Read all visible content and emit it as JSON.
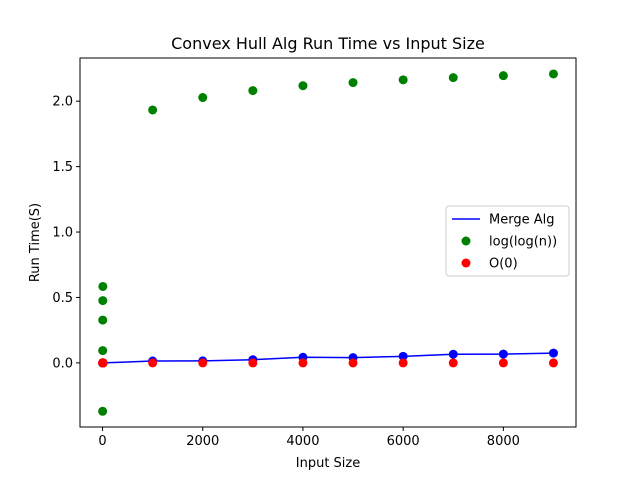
{
  "chart_data": {
    "type": "scatter",
    "title": "Convex Hull Alg Run Time vs Input Size",
    "xlabel": "Input Size",
    "ylabel": "Run Time(S)",
    "xlim": [
      -450,
      9450
    ],
    "ylim": [
      -0.49,
      2.33
    ],
    "xticks": [
      0,
      2000,
      4000,
      6000,
      8000
    ],
    "xtick_labels": [
      "0",
      "2000",
      "4000",
      "6000",
      "8000"
    ],
    "yticks": [
      0.0,
      0.5,
      1.0,
      1.5,
      2.0
    ],
    "ytick_labels": [
      "0.0",
      "0.5",
      "1.0",
      "1.5",
      "2.0"
    ],
    "grid": false,
    "legend_position": "center-right",
    "series": [
      {
        "name": "Merge Alg",
        "kind": "line-with-markers",
        "color": "#0000ff",
        "x": [
          1,
          2,
          3,
          4,
          5,
          6,
          7,
          8,
          9,
          10,
          1000,
          2000,
          3000,
          4000,
          5000,
          6000,
          7000,
          8000,
          9000
        ],
        "y": [
          0.0,
          0.0,
          0.0,
          0.0,
          0.0,
          0.0,
          0.0,
          0.0,
          0.0,
          0.0,
          0.014,
          0.015,
          0.024,
          0.043,
          0.04,
          0.05,
          0.066,
          0.067,
          0.075
        ]
      },
      {
        "name": "log(log(n))",
        "kind": "scatter",
        "color": "#008000",
        "x": [
          2,
          3,
          4,
          5,
          6,
          1000,
          2000,
          3000,
          4000,
          5000,
          6000,
          7000,
          8000,
          9000
        ],
        "y": [
          -0.37,
          0.094,
          0.327,
          0.476,
          0.584,
          1.933,
          2.028,
          2.081,
          2.118,
          2.142,
          2.163,
          2.18,
          2.195,
          2.208
        ]
      },
      {
        "name": "O(0)",
        "kind": "scatter",
        "color": "#ff0000",
        "x": [
          1,
          2,
          3,
          4,
          5,
          6,
          7,
          8,
          9,
          10,
          1000,
          2000,
          3000,
          4000,
          5000,
          6000,
          7000,
          8000,
          9000
        ],
        "y": [
          0,
          0,
          0,
          0,
          0,
          0,
          0,
          0,
          0,
          0,
          0,
          0,
          0,
          0,
          0,
          0,
          0,
          0,
          0
        ]
      }
    ]
  }
}
